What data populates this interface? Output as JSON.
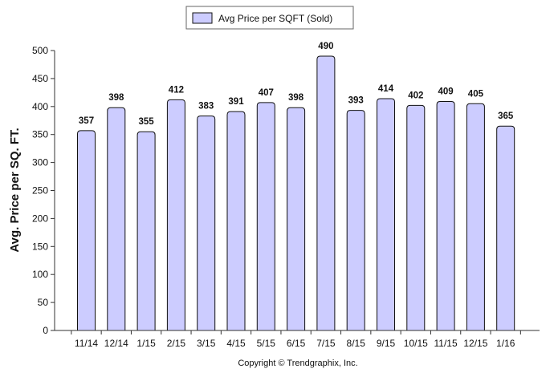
{
  "chart_data": {
    "type": "bar",
    "categories": [
      "11/14",
      "12/14",
      "1/15",
      "2/15",
      "3/15",
      "4/15",
      "5/15",
      "6/15",
      "7/15",
      "8/15",
      "9/15",
      "10/15",
      "11/15",
      "12/15",
      "1/16"
    ],
    "series": [
      {
        "name": "Avg Price per SQFT (Sold)",
        "values": [
          357,
          398,
          355,
          412,
          383,
          391,
          407,
          398,
          490,
          393,
          414,
          402,
          409,
          405,
          365
        ]
      }
    ],
    "data_labels": [
      "357",
      "398",
      "355",
      "412",
      "383",
      "391",
      "407",
      "398",
      "490",
      "393",
      "414",
      "402",
      "409",
      "405",
      "365"
    ],
    "ylabel": "Avg. Price per SQ. FT.",
    "xlabel": "",
    "ylim": [
      0,
      500
    ],
    "yticks": [
      0,
      50,
      100,
      150,
      200,
      250,
      300,
      350,
      400,
      450,
      500
    ],
    "grid": false,
    "legend_position": "top-center",
    "footer": "Copyright © Trendgraphix, Inc.",
    "colors": {
      "bar_fill": "#ccccff",
      "bar_stroke": "#111111",
      "axis": "#333333"
    }
  }
}
